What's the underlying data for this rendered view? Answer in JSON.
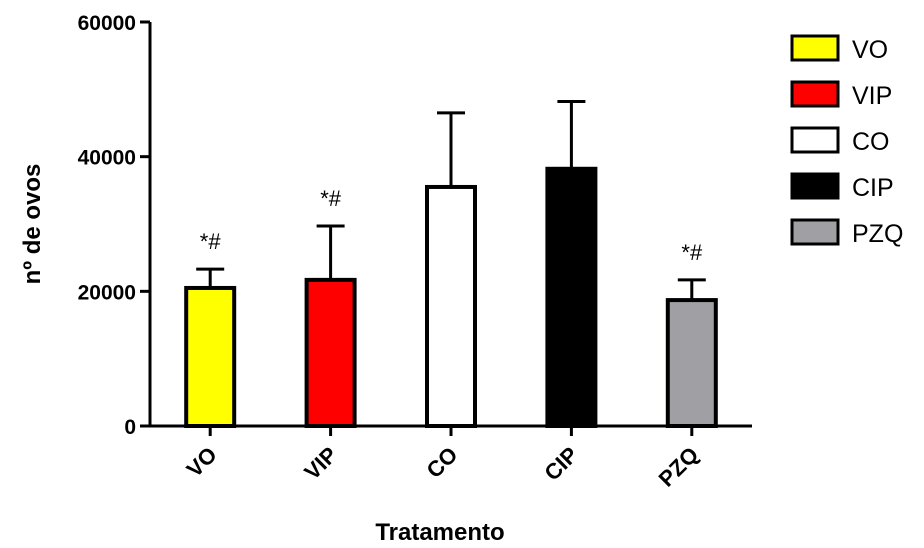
{
  "chart_data": {
    "type": "bar",
    "xlabel": "Tratamento",
    "ylabel": "nº de ovos",
    "ylim": [
      0,
      60000
    ],
    "yticks": [
      0,
      20000,
      40000,
      60000
    ],
    "ytick_labels": [
      "0",
      "20000",
      "40000",
      "60000"
    ],
    "categories": [
      "VO",
      "VIP",
      "CO",
      "CIP",
      "PZQ"
    ],
    "values": [
      20500,
      21700,
      35500,
      38200,
      18700
    ],
    "errors": [
      2800,
      8000,
      11000,
      10000,
      3000
    ],
    "annotations": [
      "*#",
      "*#",
      "",
      "",
      "*#"
    ],
    "colors": [
      "#ffff00",
      "#ff0000",
      "#ffffff",
      "#000000",
      "#a0a0a4"
    ],
    "legend": {
      "position": "right",
      "entries": [
        "VO",
        "VIP",
        "CO",
        "CIP",
        "PZQ"
      ]
    },
    "grid": false
  }
}
